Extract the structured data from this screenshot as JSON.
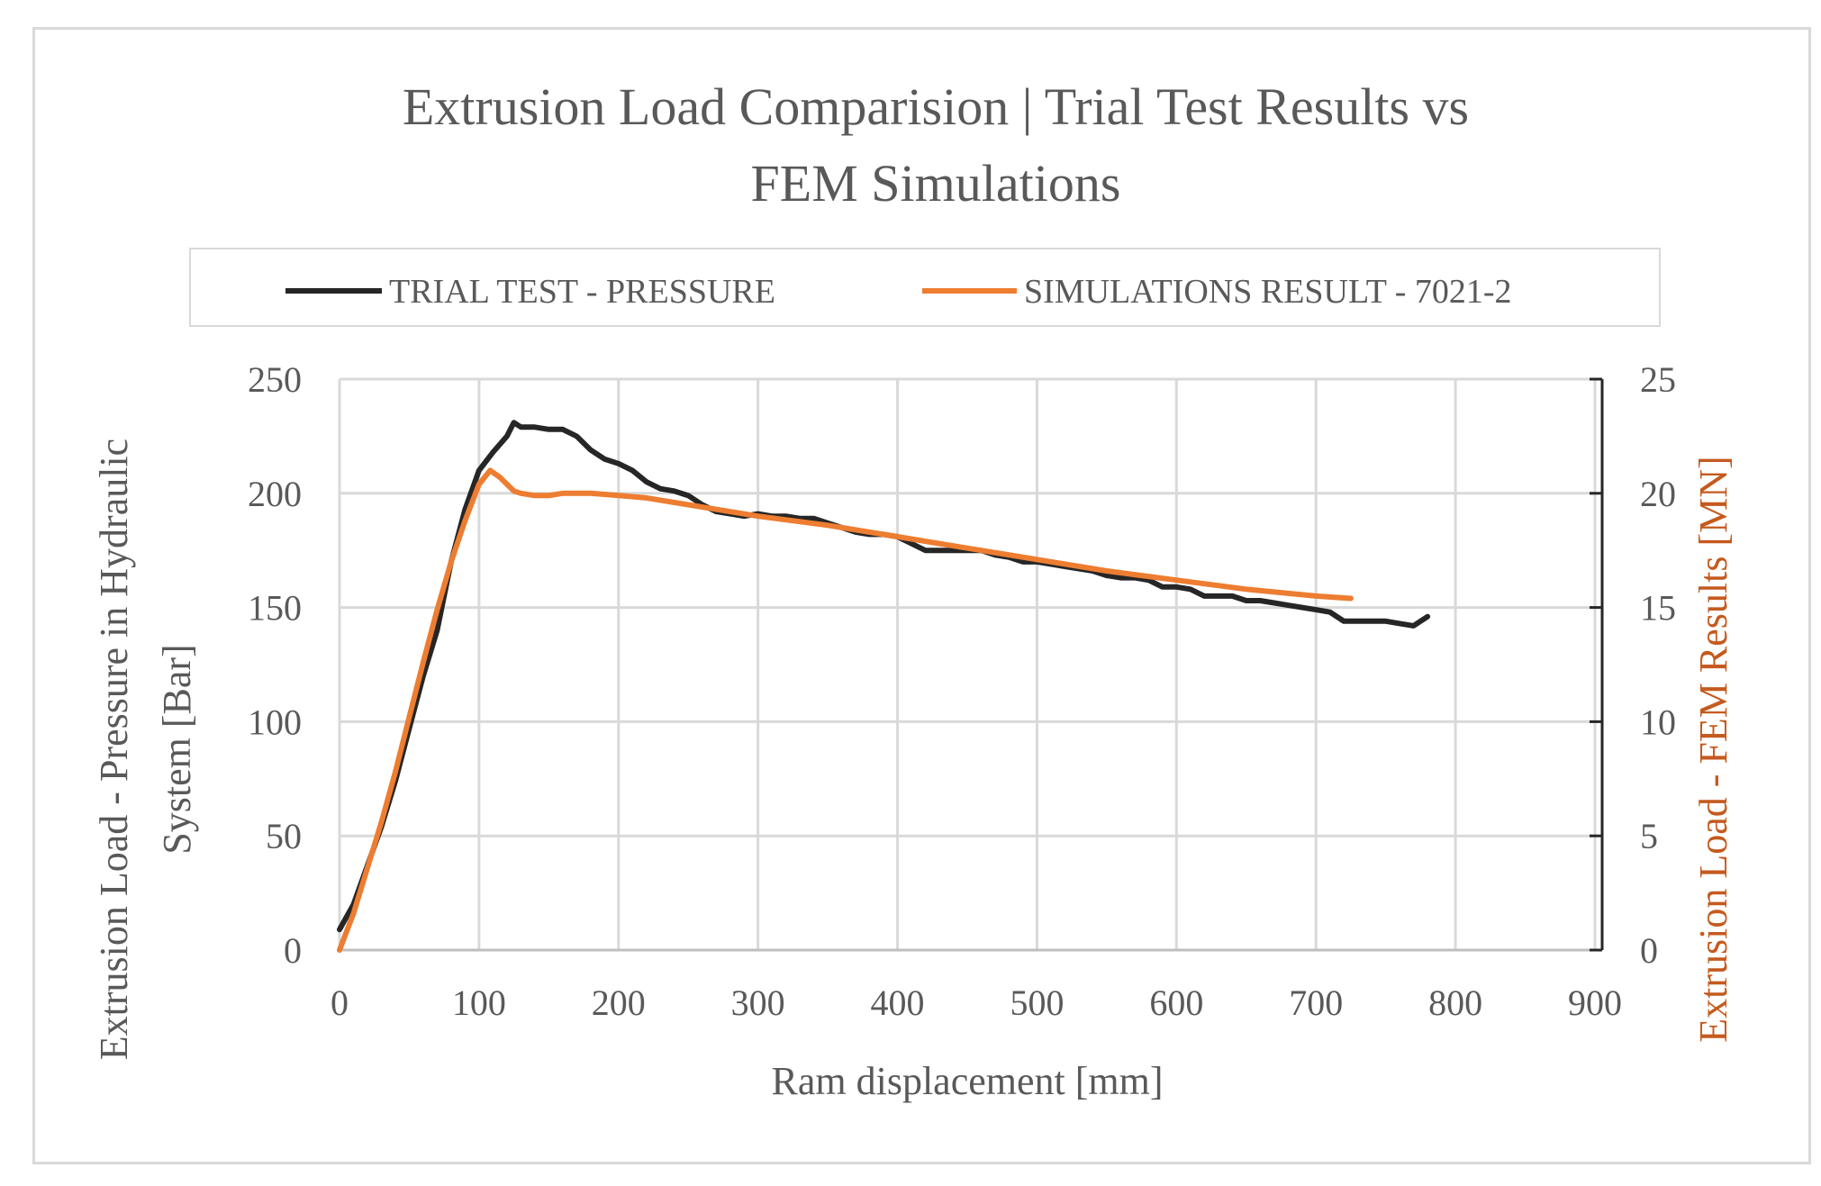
{
  "chart_data": {
    "type": "line",
    "title_lines": [
      "Extrusion Load Comparision | Trial Test Results vs",
      "FEM Simulations"
    ],
    "xlabel": "Ram displacement  [mm]",
    "ylabel_lines": [
      "Extrusion Load - Pressure in Hydraulic",
      "System [Bar]"
    ],
    "y2label": "Extrusion Load - FEM Results [MN]",
    "xlim": [
      0,
      900
    ],
    "ylim": [
      0,
      250
    ],
    "y2lim": [
      0,
      25
    ],
    "x_ticks": [
      "0",
      "100",
      "200",
      "300",
      "400",
      "500",
      "600",
      "700",
      "800",
      "900"
    ],
    "y_ticks": [
      "0",
      "50",
      "100",
      "150",
      "200",
      "250"
    ],
    "y2_ticks": [
      "0",
      "5",
      "10",
      "15",
      "20",
      "25"
    ],
    "grid": true,
    "legend_position": "top",
    "colors": {
      "trial": "#262626",
      "sim": "#ed7d31"
    },
    "series": [
      {
        "name": "TRIAL TEST - PRESSURE",
        "axis": "left",
        "x": [
          0,
          10,
          20,
          30,
          40,
          50,
          60,
          70,
          80,
          90,
          100,
          110,
          120,
          125,
          130,
          140,
          150,
          160,
          170,
          180,
          190,
          200,
          210,
          220,
          230,
          240,
          250,
          260,
          270,
          280,
          290,
          300,
          310,
          320,
          330,
          340,
          350,
          360,
          370,
          380,
          390,
          400,
          410,
          420,
          430,
          440,
          450,
          460,
          470,
          480,
          490,
          500,
          510,
          520,
          530,
          540,
          550,
          560,
          570,
          580,
          590,
          600,
          610,
          620,
          630,
          640,
          650,
          660,
          670,
          680,
          690,
          700,
          710,
          720,
          730,
          740,
          750,
          760,
          770,
          780
        ],
        "values": [
          9,
          20,
          37,
          54,
          74,
          97,
          120,
          140,
          170,
          193,
          210,
          218,
          225,
          231,
          229,
          229,
          228,
          228,
          225,
          219,
          215,
          213,
          210,
          205,
          202,
          201,
          199,
          195,
          192,
          191,
          190,
          191,
          190,
          190,
          189,
          189,
          187,
          185,
          183,
          182,
          182,
          181,
          178,
          175,
          175,
          175,
          175,
          175,
          173,
          172,
          170,
          170,
          169,
          168,
          167,
          166,
          164,
          163,
          163,
          162,
          159,
          159,
          158,
          155,
          155,
          155,
          153,
          153,
          152,
          151,
          150,
          149,
          148,
          144,
          144,
          144,
          144,
          143,
          142,
          146
        ]
      },
      {
        "name": "SIMULATIONS RESULT - 7021-2",
        "axis": "right",
        "x": [
          0,
          10,
          20,
          30,
          40,
          50,
          60,
          70,
          80,
          90,
          100,
          108,
          115,
          120,
          125,
          130,
          140,
          150,
          160,
          180,
          200,
          220,
          250,
          270,
          300,
          350,
          400,
          450,
          500,
          550,
          600,
          650,
          700,
          725
        ],
        "values": [
          0,
          1.6,
          3.6,
          5.6,
          7.8,
          10.2,
          12.6,
          14.9,
          17.0,
          18.8,
          20.4,
          21.0,
          20.7,
          20.4,
          20.1,
          20.0,
          19.9,
          19.9,
          20.0,
          20.0,
          19.9,
          19.8,
          19.5,
          19.3,
          19.0,
          18.6,
          18.1,
          17.6,
          17.1,
          16.6,
          16.2,
          15.8,
          15.5,
          15.4
        ]
      }
    ]
  }
}
